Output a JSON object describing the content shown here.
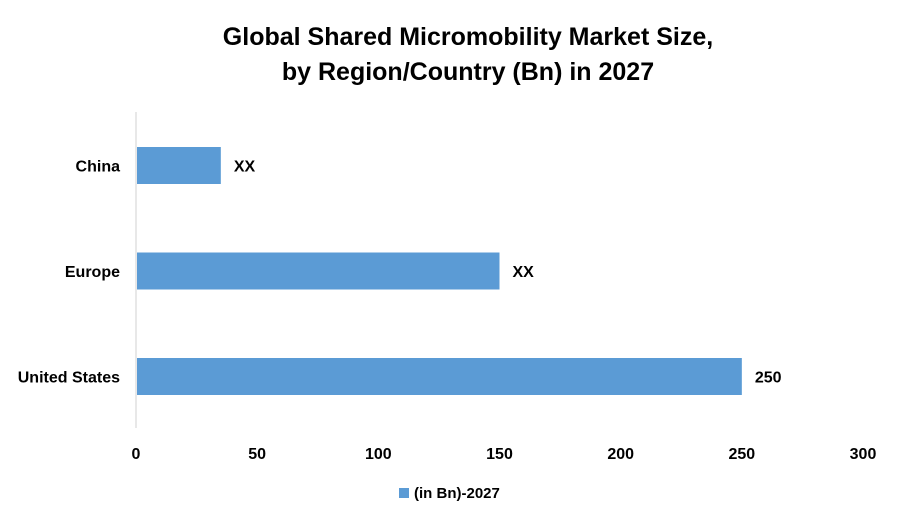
{
  "chart_data": {
    "type": "bar",
    "orientation": "horizontal",
    "title": [
      "Global Shared Micromobility Market Size,",
      "by Region/Country (Bn) in 2027"
    ],
    "categories": [
      "China",
      "Europe",
      "United States"
    ],
    "series": [
      {
        "name": "(in Bn)-2027",
        "values": [
          35,
          150,
          250
        ],
        "data_labels": [
          "XX",
          "XX",
          "250"
        ],
        "color": "#5B9BD5"
      }
    ],
    "xlim": [
      0,
      300
    ],
    "xticks": [
      0,
      50,
      100,
      150,
      200,
      250,
      300
    ],
    "xlabel": "",
    "ylabel": "",
    "grid": false,
    "legend_position": "bottom"
  }
}
